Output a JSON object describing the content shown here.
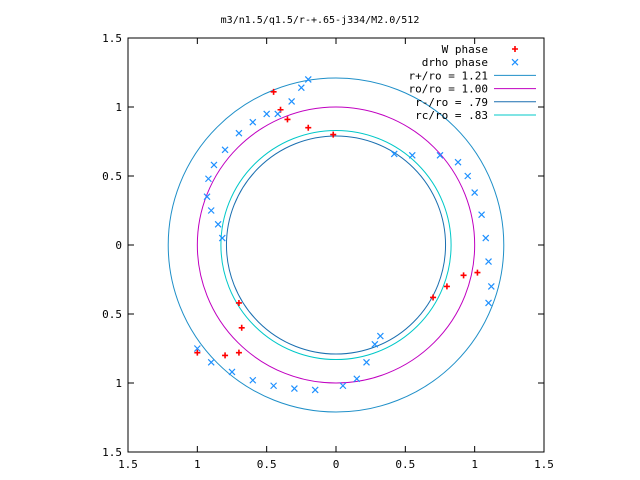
{
  "chart_data": {
    "type": "scatter",
    "title": "m3/n1.5/q1.5/r-+.65-j334/M2.0/512",
    "xlim": [
      -1.5,
      1.5
    ],
    "ylim": [
      -1.5,
      1.5
    ],
    "x_ticks": [
      -1.5,
      -1,
      -0.5,
      0,
      0.5,
      1,
      1.5
    ],
    "x_tick_labels": [
      "1.5",
      "1",
      "0.5",
      "0",
      "0.5",
      "1",
      "1.5"
    ],
    "y_ticks": [
      1.5,
      1,
      0.5,
      0,
      -0.5,
      -1,
      -1.5
    ],
    "y_tick_labels": [
      "1.5",
      "1",
      "0.5",
      "0",
      "0.5",
      "1",
      "1.5"
    ],
    "grid": false,
    "legend_position": "top-right",
    "legend": [
      {
        "label": "W phase",
        "marker": "plus",
        "color": "#ff0000"
      },
      {
        "label": "drho phase",
        "marker": "x",
        "color": "#1e90ff"
      },
      {
        "label": "r+/ro = 1.21",
        "marker": "line",
        "color": "#1f8fc8"
      },
      {
        "label": "ro/ro = 1.00",
        "marker": "line",
        "color": "#c000c0"
      },
      {
        "label": "r-/ro = .79",
        "marker": "line",
        "color": "#1a6fb0"
      },
      {
        "label": "rc/ro = .83",
        "marker": "line",
        "color": "#00c8c8"
      }
    ],
    "circles": [
      {
        "name": "r+/ro = 1.21",
        "radius": 1.21,
        "color": "#1f8fc8"
      },
      {
        "name": "ro/ro = 1.00",
        "radius": 1.0,
        "color": "#c000c0"
      },
      {
        "name": "r-/ro = .79",
        "radius": 0.79,
        "color": "#1a6fb0"
      },
      {
        "name": "rc/ro = .83",
        "radius": 0.83,
        "color": "#00c8c8"
      }
    ],
    "series": [
      {
        "name": "W phase",
        "color": "#ff0000",
        "points": [
          [
            -0.45,
            1.11
          ],
          [
            -0.4,
            0.98
          ],
          [
            -0.35,
            0.91
          ],
          [
            -0.2,
            0.85
          ],
          [
            -0.02,
            0.8
          ],
          [
            0.7,
            -0.38
          ],
          [
            0.8,
            -0.3
          ],
          [
            0.92,
            -0.22
          ],
          [
            1.02,
            -0.2
          ],
          [
            -0.7,
            -0.42
          ],
          [
            -0.68,
            -0.6
          ],
          [
            -0.7,
            -0.78
          ],
          [
            -0.8,
            -0.8
          ],
          [
            -1.0,
            -0.78
          ]
        ]
      },
      {
        "name": "drho phase",
        "color": "#1e90ff",
        "points": [
          [
            -0.2,
            1.2
          ],
          [
            -0.25,
            1.14
          ],
          [
            -0.32,
            1.04
          ],
          [
            -0.42,
            0.95
          ],
          [
            -0.5,
            0.95
          ],
          [
            -0.6,
            0.89
          ],
          [
            -0.7,
            0.81
          ],
          [
            -0.8,
            0.69
          ],
          [
            -0.88,
            0.58
          ],
          [
            -0.92,
            0.48
          ],
          [
            -0.93,
            0.35
          ],
          [
            -0.9,
            0.25
          ],
          [
            -0.85,
            0.15
          ],
          [
            -0.82,
            0.05
          ],
          [
            0.42,
            0.66
          ],
          [
            0.55,
            0.65
          ],
          [
            0.75,
            0.65
          ],
          [
            0.88,
            0.6
          ],
          [
            0.95,
            0.5
          ],
          [
            1.0,
            0.38
          ],
          [
            1.05,
            0.22
          ],
          [
            1.08,
            0.05
          ],
          [
            1.1,
            -0.12
          ],
          [
            1.12,
            -0.3
          ],
          [
            1.1,
            -0.42
          ],
          [
            -1.0,
            -0.75
          ],
          [
            -0.9,
            -0.85
          ],
          [
            -0.75,
            -0.92
          ],
          [
            -0.6,
            -0.98
          ],
          [
            -0.45,
            -1.02
          ],
          [
            -0.3,
            -1.04
          ],
          [
            -0.15,
            -1.05
          ],
          [
            0.05,
            -1.02
          ],
          [
            0.15,
            -0.97
          ],
          [
            0.22,
            -0.85
          ],
          [
            0.28,
            -0.72
          ],
          [
            0.32,
            -0.66
          ]
        ]
      }
    ]
  }
}
